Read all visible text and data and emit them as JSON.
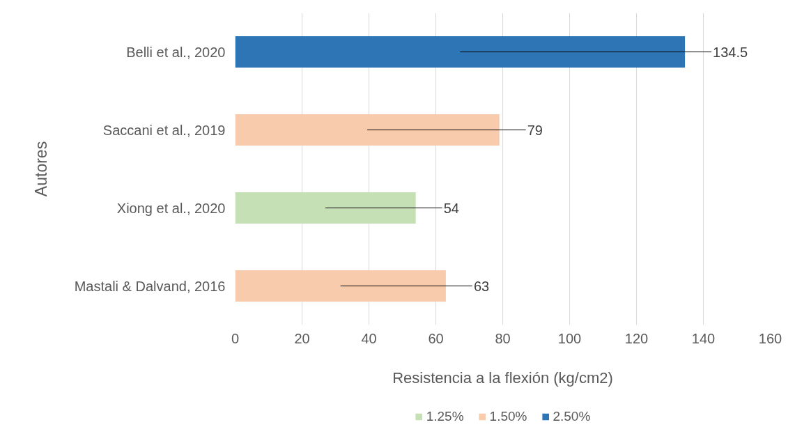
{
  "chart_data": {
    "type": "bar",
    "orientation": "horizontal",
    "categories": [
      "Belli et al., 2020",
      "Saccani et al., 2019",
      "Xiong et al., 2020",
      "Mastali & Dalvand, 2016"
    ],
    "series": [
      {
        "name": "1.25%",
        "color": "#c5e0b4",
        "values": [
          null,
          null,
          54,
          null
        ]
      },
      {
        "name": "1.50%",
        "color": "#f8cbad",
        "values": [
          null,
          79,
          null,
          63
        ]
      },
      {
        "name": "2.50%",
        "color": "#2e75b6",
        "values": [
          134.5,
          null,
          null,
          null
        ]
      }
    ],
    "xlabel": "Resistencia a la flexión (kg/cm2)",
    "ylabel": "Autores",
    "xlim": [
      0,
      160
    ],
    "xticks": [
      0,
      20,
      40,
      60,
      80,
      100,
      120,
      140,
      160
    ],
    "grid": "x",
    "legend": "bottom",
    "data_labels": true
  }
}
